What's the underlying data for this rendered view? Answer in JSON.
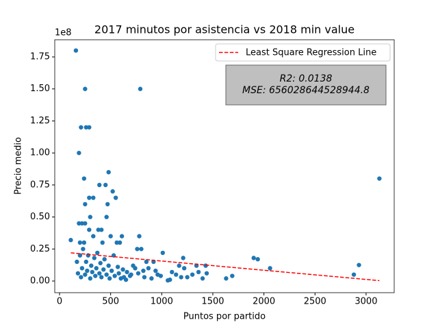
{
  "chart_data": {
    "type": "scatter",
    "title": "2017 minutos por asistencia vs 2018 min value",
    "x_label": "Puntos por partido",
    "y_label": "Precio medio",
    "y_offset_label": "1e8",
    "xlim": [
      -47,
      3275
    ],
    "ylim": [
      -9100000,
      188400000
    ],
    "xticks": [
      0,
      500,
      1000,
      1500,
      2000,
      2500,
      3000
    ],
    "yticks": [
      {
        "value": 0,
        "label": "0.00"
      },
      {
        "value": 25000000,
        "label": "0.25"
      },
      {
        "value": 50000000,
        "label": "0.50"
      },
      {
        "value": 75000000,
        "label": "0.75"
      },
      {
        "value": 100000000,
        "label": "1.00"
      },
      {
        "value": 125000000,
        "label": "1.25"
      },
      {
        "value": 150000000,
        "label": "1.50"
      },
      {
        "value": 175000000,
        "label": "1.75"
      }
    ],
    "legend": "upper right",
    "series": [
      {
        "color": "#1f77b4",
        "x": [
          160,
          250,
          790,
          210,
          260,
          290,
          190,
          480,
          240,
          3130,
          390,
          450,
          520,
          290,
          330,
          550,
          250,
          470,
          300,
          460,
          220,
          190,
          250,
          380,
          410,
          290,
          330,
          500,
          610,
          780,
          110,
          200,
          240,
          420,
          560,
          590,
          760,
          800,
          1010,
          1210,
          1900,
          1940,
          2060,
          2930,
          2880,
          1630,
          1690,
          1430,
          1340,
          1440,
          1360,
          1170,
          1140,
          1220,
          1250,
          1080,
          1060,
          960,
          920,
          850,
          900,
          820,
          740,
          700,
          650,
          600,
          170,
          180,
          200,
          210,
          220,
          230,
          250,
          260,
          270,
          280,
          300,
          310,
          320,
          340,
          350,
          360,
          370,
          390,
          400,
          410,
          430,
          440,
          460,
          480,
          490,
          510,
          530,
          540,
          570,
          580,
          620,
          630,
          660,
          690,
          720,
          770,
          830,
          870,
          940,
          990,
          1100,
          1190,
          1300,
          1400
        ],
        "values": [
          180000000,
          150000000,
          150000000,
          120000000,
          120000000,
          120000000,
          100000000,
          85000000,
          80000000,
          80000000,
          75000000,
          75000000,
          70000000,
          65000000,
          65000000,
          65000000,
          60000000,
          60000000,
          50000000,
          50000000,
          45000000,
          45000000,
          45000000,
          40000000,
          40000000,
          40000000,
          35000000,
          35000000,
          35000000,
          35000000,
          32000000,
          30000000,
          30000000,
          30000000,
          30000000,
          30000000,
          25000000,
          25000000,
          22000000,
          18000000,
          18000000,
          17000000,
          10000000,
          12500000,
          5000000,
          2000000,
          4000000,
          12000000,
          12000000,
          6000000,
          7000000,
          12000000,
          5000000,
          10000000,
          3000000,
          1000000,
          500000,
          5000000,
          15000000,
          15000000,
          2000000,
          8000000,
          10000000,
          5000000,
          1000000,
          2000000,
          15000000,
          6000000,
          20000000,
          3000000,
          10000000,
          25000000,
          5000000,
          15000000,
          8000000,
          20000000,
          2000000,
          12000000,
          7000000,
          18000000,
          4000000,
          10000000,
          22000000,
          6000000,
          14000000,
          3000000,
          9000000,
          17000000,
          5000000,
          12000000,
          2000000,
          8000000,
          20000000,
          4000000,
          11000000,
          6000000,
          9000000,
          3000000,
          7000000,
          4000000,
          12000000,
          6000000,
          3000000,
          10000000,
          8000000,
          4000000,
          7000000,
          3000000,
          5000000,
          2000000
        ]
      }
    ],
    "regression": {
      "name": "Least Square Regression Line",
      "color": "#ff0000",
      "linestyle": "dashed",
      "x": [
        110,
        3130
      ],
      "values": [
        22000000,
        300000
      ]
    },
    "annotation": [
      "R2: 0.0138",
      "MSE: 656028644528944.8"
    ]
  }
}
